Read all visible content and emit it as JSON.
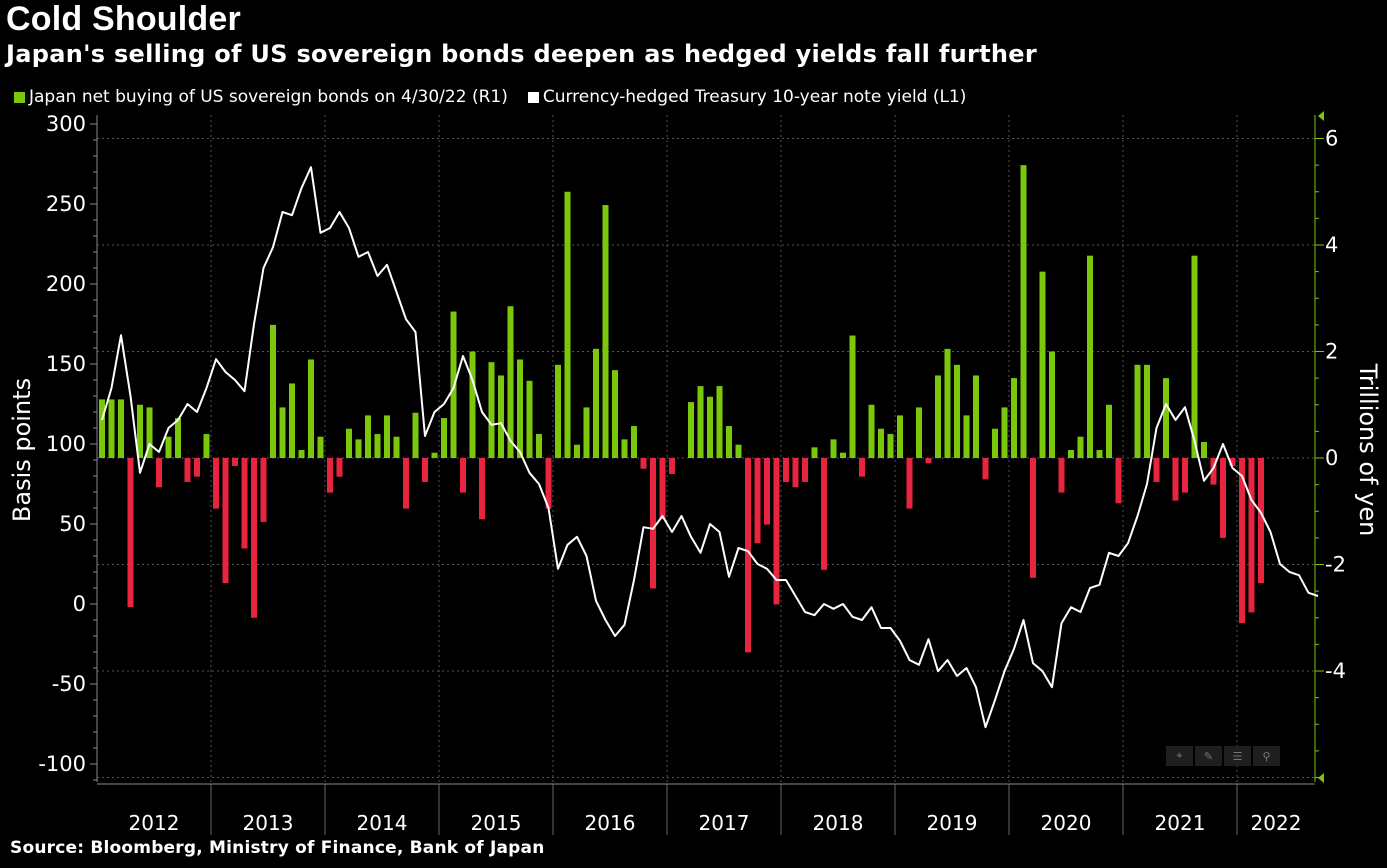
{
  "title": "Cold Shoulder",
  "subtitle": "Japan's selling of US sovereign bonds deepen as hedged yields fall further",
  "source": "Source: Bloomberg, Ministry of Finance, Bank of Japan",
  "toolbar": {
    "crosshair": "⌖",
    "draw": "✎",
    "table": "☰",
    "zoom": "⚲"
  },
  "colors": {
    "buy": "#7ac70c",
    "sell": "#e8253f",
    "line": "#ffffff",
    "background": "#000000"
  },
  "chart_data": {
    "type": "bar+line",
    "legend": [
      {
        "name": "Japan net buying of US sovereign bonds on 4/30/22 (R1)",
        "color": "#7ac70c"
      },
      {
        "name": "Currency-hedged Treasury 10-year note yield (L1)",
        "color": "#ffffff"
      }
    ],
    "ylabel_left": "Basis points",
    "ylabel_right": "Trillions of yen",
    "left_axis": {
      "ticks": [
        300,
        250,
        200,
        150,
        100,
        50,
        0,
        -50,
        -100
      ],
      "range": [
        -110,
        305
      ]
    },
    "right_axis": {
      "ticks": [
        6,
        4,
        2,
        0,
        -2,
        -4
      ],
      "range": [
        -6,
        6.4
      ]
    },
    "x_axis": {
      "labels": [
        "2012",
        "2013",
        "2014",
        "2015",
        "2016",
        "2017",
        "2018",
        "2019",
        "2020",
        "2021",
        "2022"
      ]
    },
    "x_start": "2012-01",
    "net_buying_trillion_yen": [
      1.1,
      1.1,
      1.1,
      -2.8,
      1.0,
      0.95,
      -0.55,
      0.4,
      0.75,
      -0.45,
      -0.35,
      0.45,
      -0.95,
      -2.35,
      -0.15,
      -1.7,
      -3.0,
      -1.2,
      2.5,
      0.95,
      1.4,
      0.15,
      1.85,
      0.4,
      -0.65,
      -0.35,
      0.55,
      0.35,
      0.8,
      0.45,
      0.8,
      0.4,
      -0.95,
      0.85,
      -0.45,
      0.1,
      0.75,
      2.75,
      -0.65,
      2.0,
      -1.15,
      1.8,
      1.55,
      2.85,
      1.85,
      1.45,
      0.45,
      -0.95,
      1.75,
      5.0,
      0.25,
      0.95,
      2.05,
      4.75,
      1.65,
      0.35,
      0.6,
      -0.2,
      -2.45,
      -1.15,
      -0.3,
      0.0,
      1.05,
      1.35,
      1.15,
      1.35,
      0.6,
      0.25,
      -3.65,
      -1.6,
      -1.25,
      -2.75,
      -0.45,
      -0.55,
      -0.45,
      0.2,
      -2.1,
      0.35,
      0.1,
      2.3,
      -0.35,
      1.0,
      0.55,
      0.45,
      0.8,
      -0.95,
      0.95,
      -0.1,
      1.55,
      2.05,
      1.75,
      0.8,
      1.55,
      -0.4,
      0.55,
      0.95,
      1.5,
      5.5,
      -2.25,
      3.5,
      2.0,
      -0.65,
      0.15,
      0.4,
      3.8,
      0.15,
      1.0,
      -0.85,
      0.0,
      1.75,
      1.75,
      -0.45,
      1.5,
      -0.8,
      -0.65,
      3.8,
      0.3,
      -0.5,
      -1.5,
      -0.15,
      -3.1,
      -2.9,
      -2.35
    ],
    "hedged_yield_bp": [
      115,
      135,
      168,
      130,
      82,
      100,
      95,
      110,
      115,
      125,
      120,
      135,
      153,
      145,
      140,
      133,
      175,
      210,
      223,
      245,
      243,
      260,
      273,
      232,
      235,
      245,
      235,
      217,
      220,
      205,
      212,
      195,
      178,
      170,
      105,
      120,
      125,
      135,
      155,
      140,
      120,
      112,
      113,
      102,
      95,
      82,
      75,
      60,
      22,
      37,
      42,
      30,
      2,
      -10,
      -20,
      -13,
      15,
      48,
      47,
      55,
      45,
      55,
      42,
      32,
      50,
      45,
      17,
      35,
      33,
      25,
      22,
      15,
      15,
      5,
      -5,
      -7,
      0,
      -3,
      0,
      -8,
      -10,
      -2,
      -15,
      -15,
      -23,
      -35,
      -38,
      -22,
      -42,
      -35,
      -45,
      -40,
      -52,
      -77,
      -60,
      -42,
      -28,
      -10,
      -37,
      -42,
      -52,
      -12,
      -2,
      -5,
      10,
      12,
      32,
      30,
      38,
      55,
      75,
      110,
      125,
      115,
      123,
      102,
      77,
      85,
      100,
      85,
      80,
      65,
      57,
      45,
      25,
      20,
      18,
      7,
      5
    ]
  }
}
